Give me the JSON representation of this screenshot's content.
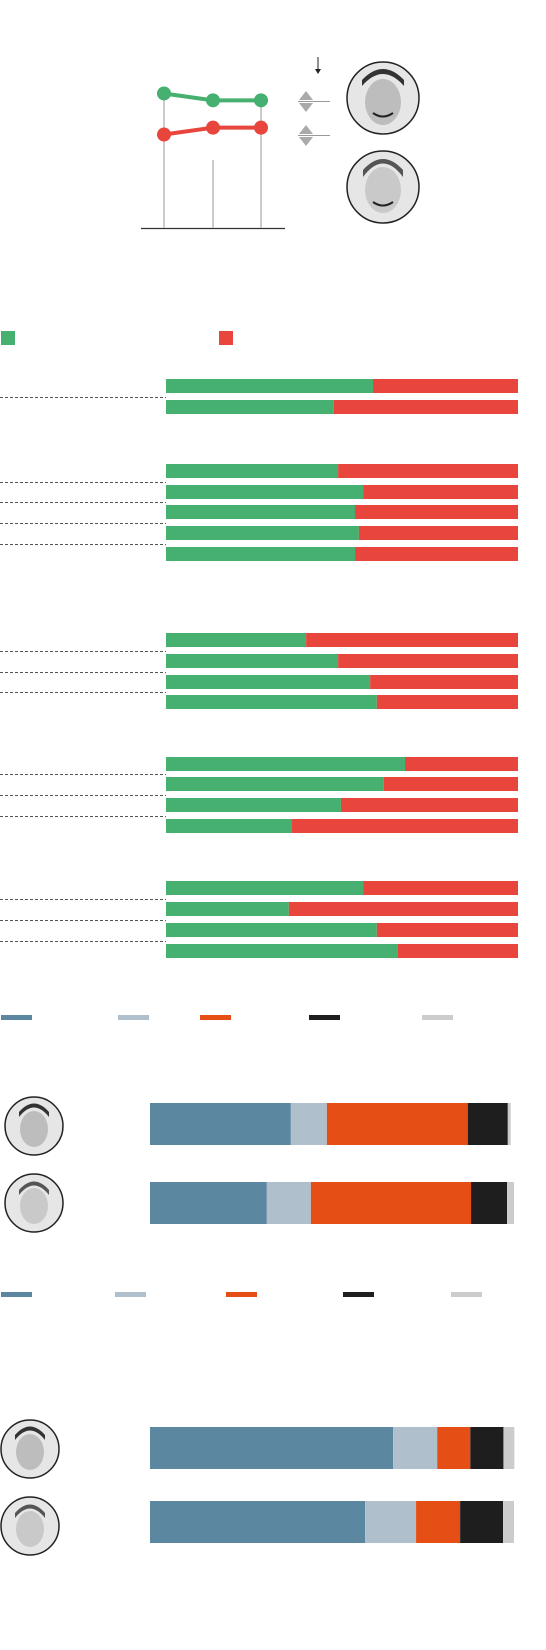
{
  "chart_data": [
    {
      "type": "line",
      "categories": [
        null,
        null,
        null
      ],
      "ylim": [
        0,
        75
      ],
      "series": [
        {
          "color": "#45b06f",
          "values": [
            59,
            56,
            56
          ]
        },
        {
          "color": "#e8453c",
          "values": [
            41,
            44,
            44
          ]
        }
      ]
    },
    {
      "type": "bar",
      "stacked": true,
      "orientation": "horizontal",
      "xlim": [
        0,
        100
      ],
      "categories": [
        null,
        null
      ],
      "series": [
        {
          "color": "#45b06f",
          "values": [
            58.8,
            47.7
          ]
        },
        {
          "color": "#e8453c",
          "values": [
            41.2,
            52.3
          ]
        }
      ]
    },
    {
      "type": "bar",
      "stacked": true,
      "orientation": "horizontal",
      "xlim": [
        0,
        100
      ],
      "categories": [
        null,
        null,
        null,
        null,
        null
      ],
      "series": [
        {
          "color": "#45b06f",
          "values": [
            48.9,
            56,
            53.7,
            54.8,
            53.7
          ]
        },
        {
          "color": "#e8453c",
          "values": [
            51.1,
            44,
            46.3,
            45.2,
            46.3
          ]
        }
      ]
    },
    {
      "type": "bar",
      "stacked": true,
      "orientation": "horizontal",
      "xlim": [
        0,
        100
      ],
      "categories": [
        null,
        null,
        null,
        null
      ],
      "series": [
        {
          "color": "#45b06f",
          "values": [
            39.8,
            48.9,
            58,
            59.9
          ]
        },
        {
          "color": "#e8453c",
          "values": [
            60.2,
            51.1,
            42,
            40.1
          ]
        }
      ]
    },
    {
      "type": "bar",
      "stacked": true,
      "orientation": "horizontal",
      "xlim": [
        0,
        100
      ],
      "categories": [
        null,
        null,
        null,
        null
      ],
      "series": [
        {
          "color": "#45b06f",
          "values": [
            67.9,
            61.9,
            49.7,
            35.8
          ]
        },
        {
          "color": "#e8453c",
          "values": [
            32.1,
            38.1,
            50.3,
            64.2
          ]
        }
      ]
    },
    {
      "type": "bar",
      "stacked": true,
      "orientation": "horizontal",
      "xlim": [
        0,
        100
      ],
      "categories": [
        null,
        null,
        null,
        null
      ],
      "series": [
        {
          "color": "#45b06f",
          "values": [
            56,
            34.9,
            59.9,
            65.9
          ]
        },
        {
          "color": "#e8453c",
          "values": [
            44,
            65.1,
            40.1,
            34.1
          ]
        }
      ]
    },
    {
      "type": "bar",
      "stacked": true,
      "orientation": "horizontal",
      "xlim": [
        0,
        100
      ],
      "categories": [
        null,
        null
      ],
      "series": [
        {
          "color": "#5b87a0",
          "values": [
            38.7,
            32.1
          ]
        },
        {
          "color": "#b0bfcc",
          "values": [
            9.9,
            12.1
          ]
        },
        {
          "color": "#e54e14",
          "values": [
            38.7,
            44
          ]
        },
        {
          "color": "#1e1e1e",
          "values": [
            11,
            9.9
          ]
        },
        {
          "color": "#cccccc",
          "values": [
            0.8,
            1.9
          ]
        }
      ]
    },
    {
      "type": "bar",
      "stacked": true,
      "orientation": "horizontal",
      "xlim": [
        0,
        100
      ],
      "categories": [
        null,
        null
      ],
      "series": [
        {
          "color": "#5b87a0",
          "values": [
            66.8,
            59.1
          ]
        },
        {
          "color": "#b0bfcc",
          "values": [
            12.1,
            14
          ]
        },
        {
          "color": "#e54e14",
          "values": [
            9.1,
            12.1
          ]
        },
        {
          "color": "#1e1e1e",
          "values": [
            9.1,
            11.8
          ]
        },
        {
          "color": "#cccccc",
          "values": [
            3,
            3
          ]
        }
      ]
    }
  ]
}
